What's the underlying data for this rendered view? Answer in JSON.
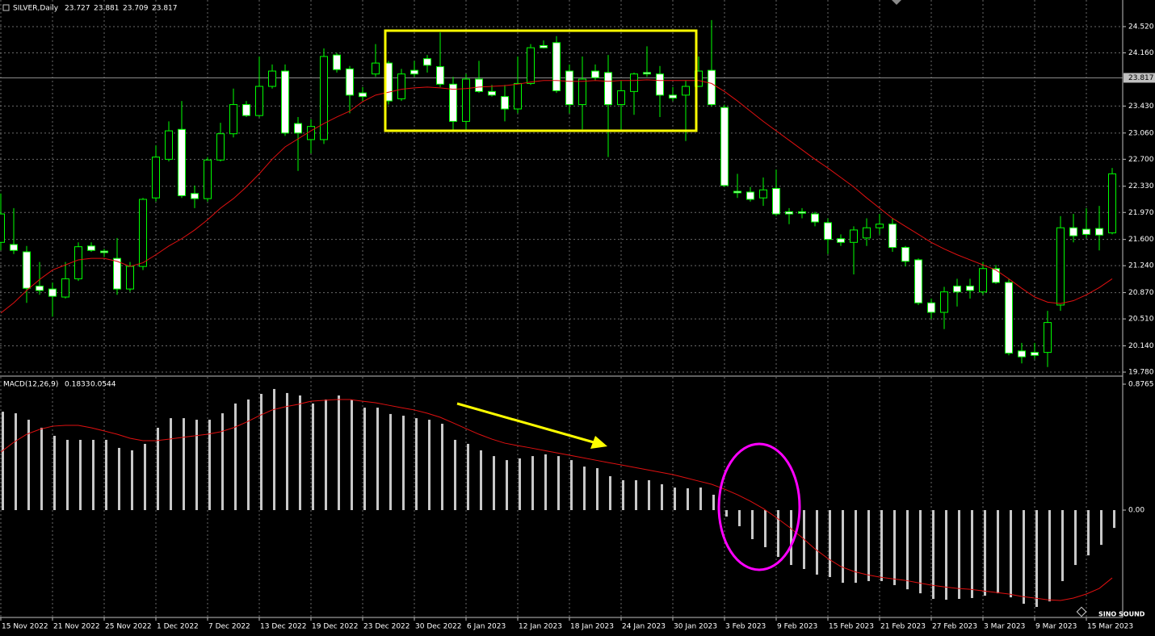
{
  "watermark": "SINO SOUND",
  "chart_data": [
    {
      "type": "candlestick",
      "header": {
        "symbol": "SILVER,Daily",
        "ohlc": [
          23.727,
          23.881,
          23.709,
          23.817
        ]
      },
      "categories": [
        "15 Nov 2022",
        null,
        null,
        null,
        "21 Nov 2022",
        null,
        null,
        null,
        "25 Nov 2022",
        null,
        null,
        null,
        "1 Dec 2022",
        null,
        null,
        null,
        "7 Dec 2022",
        null,
        null,
        null,
        "13 Dec 2022",
        null,
        null,
        null,
        "19 Dec 2022",
        null,
        null,
        null,
        "23 Dec 2022",
        null,
        null,
        null,
        "30 Dec 2022",
        null,
        null,
        null,
        "6 Jan 2023",
        null,
        null,
        null,
        "12 Jan 2023",
        null,
        null,
        null,
        "18 Jan 2023",
        null,
        null,
        null,
        "24 Jan 2023",
        null,
        null,
        null,
        "30 Jan 2023",
        null,
        null,
        null,
        "3 Feb 2023",
        null,
        null,
        null,
        "9 Feb 2023",
        null,
        null,
        null,
        "15 Feb 2023",
        null,
        null,
        null,
        "21 Feb 2023",
        null,
        null,
        null,
        "27 Feb 2023",
        null,
        null,
        null,
        "3 Mar 2023",
        null,
        null,
        null,
        "9 Mar 2023",
        null,
        null,
        null,
        "15 Mar 2023",
        null,
        null
      ],
      "ohlc": [
        [
          21.56,
          22.23,
          21.45,
          21.95
        ],
        [
          21.53,
          22.03,
          21.4,
          21.45
        ],
        [
          21.43,
          21.51,
          20.73,
          20.93
        ],
        [
          20.96,
          21.29,
          20.84,
          20.9
        ],
        [
          20.92,
          21.01,
          20.54,
          20.82
        ],
        [
          20.81,
          21.29,
          20.79,
          21.06
        ],
        [
          21.06,
          21.56,
          21.03,
          21.5
        ],
        [
          21.51,
          21.56,
          21.43,
          21.45
        ],
        [
          21.44,
          21.47,
          21.36,
          21.42
        ],
        [
          21.34,
          21.62,
          20.84,
          20.92
        ],
        [
          20.92,
          21.29,
          20.88,
          21.23
        ],
        [
          21.23,
          22.17,
          21.18,
          22.15
        ],
        [
          22.17,
          22.89,
          22.12,
          22.73
        ],
        [
          22.7,
          23.22,
          22.67,
          23.09
        ],
        [
          23.11,
          23.5,
          22.17,
          22.2
        ],
        [
          22.23,
          22.34,
          22.03,
          22.16
        ],
        [
          22.16,
          22.73,
          22.12,
          22.69
        ],
        [
          22.69,
          23.2,
          22.67,
          23.05
        ],
        [
          23.05,
          23.67,
          23.0,
          23.45
        ],
        [
          23.45,
          23.5,
          23.28,
          23.3
        ],
        [
          23.3,
          24.11,
          23.28,
          23.7
        ],
        [
          23.7,
          24.0,
          23.67,
          23.91
        ],
        [
          23.91,
          24.0,
          23.02,
          23.06
        ],
        [
          23.19,
          23.28,
          22.54,
          23.06
        ],
        [
          22.97,
          23.25,
          22.78,
          23.15
        ],
        [
          22.97,
          24.22,
          22.91,
          24.11
        ],
        [
          24.13,
          24.16,
          23.89,
          23.93
        ],
        [
          23.94,
          23.98,
          23.33,
          23.58
        ],
        [
          23.61,
          23.69,
          23.5,
          23.56
        ],
        [
          23.87,
          24.28,
          23.83,
          24.02
        ],
        [
          24.02,
          24.05,
          23.45,
          23.5
        ],
        [
          23.53,
          23.94,
          23.5,
          23.87
        ],
        [
          23.92,
          24.05,
          23.83,
          23.87
        ],
        [
          24.08,
          24.13,
          23.89,
          23.99
        ],
        [
          23.97,
          24.44,
          23.69,
          23.73
        ],
        [
          23.73,
          23.83,
          23.09,
          23.22
        ],
        [
          23.22,
          23.87,
          23.11,
          23.8
        ],
        [
          23.8,
          24.05,
          23.61,
          23.63
        ],
        [
          23.63,
          23.72,
          23.56,
          23.58
        ],
        [
          23.56,
          23.72,
          23.22,
          23.39
        ],
        [
          23.39,
          24.11,
          23.33,
          23.74
        ],
        [
          23.74,
          24.28,
          23.72,
          24.23
        ],
        [
          24.26,
          24.33,
          24.22,
          24.23
        ],
        [
          24.3,
          24.39,
          23.61,
          23.64
        ],
        [
          23.91,
          24.0,
          23.33,
          23.45
        ],
        [
          23.45,
          24.11,
          23.11,
          23.8
        ],
        [
          23.91,
          24.0,
          23.78,
          23.82
        ],
        [
          23.89,
          24.13,
          22.73,
          23.45
        ],
        [
          23.45,
          23.78,
          23.09,
          23.64
        ],
        [
          23.63,
          23.89,
          23.31,
          23.87
        ],
        [
          23.89,
          24.25,
          23.83,
          23.87
        ],
        [
          23.87,
          23.98,
          23.28,
          23.58
        ],
        [
          23.58,
          23.69,
          23.5,
          23.54
        ],
        [
          23.58,
          23.78,
          22.95,
          23.7
        ],
        [
          23.7,
          24.11,
          23.69,
          23.91
        ],
        [
          23.92,
          24.61,
          23.42,
          23.45
        ],
        [
          23.41,
          23.45,
          22.32,
          22.34
        ],
        [
          22.26,
          22.5,
          22.17,
          22.24
        ],
        [
          22.25,
          22.32,
          22.12,
          22.15
        ],
        [
          22.17,
          22.45,
          22.06,
          22.28
        ],
        [
          22.3,
          22.56,
          21.92,
          21.95
        ],
        [
          21.98,
          22.03,
          21.81,
          21.95
        ],
        [
          21.98,
          22.03,
          21.89,
          21.96
        ],
        [
          21.95,
          21.98,
          21.78,
          21.84
        ],
        [
          21.83,
          21.89,
          21.4,
          21.6
        ],
        [
          21.61,
          21.67,
          21.51,
          21.56
        ],
        [
          21.56,
          21.78,
          21.12,
          21.73
        ],
        [
          21.62,
          21.89,
          21.51,
          21.76
        ],
        [
          21.76,
          21.95,
          21.67,
          21.81
        ],
        [
          21.81,
          21.89,
          21.43,
          21.49
        ],
        [
          21.49,
          21.51,
          21.23,
          21.3
        ],
        [
          21.32,
          21.34,
          20.7,
          20.73
        ],
        [
          20.73,
          20.79,
          20.51,
          20.6
        ],
        [
          20.6,
          20.95,
          20.37,
          20.88
        ],
        [
          20.96,
          21.06,
          20.68,
          20.88
        ],
        [
          20.96,
          21.06,
          20.79,
          20.9
        ],
        [
          20.88,
          21.29,
          20.84,
          21.2
        ],
        [
          21.2,
          21.25,
          20.99,
          21.01
        ],
        [
          21.01,
          21.06,
          20.01,
          20.04
        ],
        [
          20.07,
          20.18,
          19.9,
          19.99
        ],
        [
          20.05,
          20.18,
          19.96,
          20.01
        ],
        [
          20.05,
          20.62,
          19.85,
          20.46
        ],
        [
          20.7,
          21.92,
          20.62,
          21.76
        ],
        [
          21.76,
          21.95,
          21.56,
          21.65
        ],
        [
          21.74,
          22.03,
          21.62,
          21.67
        ],
        [
          21.75,
          22.06,
          21.45,
          21.66
        ],
        [
          21.69,
          22.58,
          21.67,
          22.5
        ]
      ],
      "bull_color": "#000000",
      "bear_color": "#ffffff",
      "wick_color": "#00ff00",
      "ma": {
        "color": "#e01010",
        "values": [
          20.59,
          20.73,
          20.9,
          21.05,
          21.18,
          21.25,
          21.32,
          21.34,
          21.34,
          21.3,
          21.23,
          21.28,
          21.39,
          21.51,
          21.61,
          21.73,
          21.87,
          22.03,
          22.16,
          22.32,
          22.5,
          22.7,
          22.87,
          22.98,
          23.09,
          23.19,
          23.28,
          23.36,
          23.49,
          23.58,
          23.62,
          23.66,
          23.68,
          23.69,
          23.68,
          23.66,
          23.67,
          23.69,
          23.7,
          23.71,
          23.73,
          23.76,
          23.78,
          23.78,
          23.77,
          23.77,
          23.78,
          23.77,
          23.78,
          23.78,
          23.79,
          23.78,
          23.78,
          23.78,
          23.78,
          23.74,
          23.63,
          23.5,
          23.36,
          23.22,
          23.09,
          22.96,
          22.83,
          22.7,
          22.58,
          22.45,
          22.32,
          22.17,
          22.03,
          21.89,
          21.78,
          21.67,
          21.56,
          21.47,
          21.39,
          21.32,
          21.25,
          21.18,
          21.06,
          20.93,
          20.81,
          20.74,
          20.72,
          20.76,
          20.84,
          20.94,
          21.06
        ]
      },
      "current_price": 23.817,
      "ylim": [
        19.736,
        24.885
      ],
      "yticks": [
        {
          "value": 19.78,
          "label": "19.780"
        },
        {
          "value": 20.14,
          "label": "20.140"
        },
        {
          "value": 20.51,
          "label": "20.510"
        },
        {
          "value": 20.87,
          "label": "20.870"
        },
        {
          "value": 21.24,
          "label": "21.240"
        },
        {
          "value": 21.6,
          "label": "21.600"
        },
        {
          "value": 21.97,
          "label": "21.970"
        },
        {
          "value": 22.33,
          "label": "22.330"
        },
        {
          "value": 22.7,
          "label": "22.700"
        },
        {
          "value": 23.06,
          "label": "23.060"
        },
        {
          "value": 23.43,
          "label": "23.430"
        },
        {
          "value": 24.16,
          "label": "24.160"
        },
        {
          "value": 24.52,
          "label": "24.520"
        }
      ],
      "grid": true
    },
    {
      "type": "macd",
      "label": "MACD(12,26,9)",
      "readings": [
        0.1833,
        0.0544
      ],
      "color": "#c8c8c8",
      "values": [
        0.685,
        0.674,
        0.629,
        0.573,
        0.517,
        0.489,
        0.489,
        0.489,
        0.489,
        0.433,
        0.416,
        0.461,
        0.573,
        0.64,
        0.64,
        0.629,
        0.629,
        0.674,
        0.742,
        0.77,
        0.809,
        0.843,
        0.815,
        0.798,
        0.742,
        0.77,
        0.798,
        0.77,
        0.713,
        0.713,
        0.669,
        0.657,
        0.64,
        0.629,
        0.601,
        0.489,
        0.461,
        0.416,
        0.376,
        0.348,
        0.36,
        0.376,
        0.388,
        0.376,
        0.348,
        0.303,
        0.292,
        0.236,
        0.208,
        0.208,
        0.208,
        0.18,
        0.157,
        0.152,
        0.157,
        0.107,
        -0.045,
        -0.112,
        -0.202,
        -0.258,
        -0.326,
        -0.382,
        -0.41,
        -0.449,
        -0.466,
        -0.506,
        -0.506,
        -0.494,
        -0.494,
        -0.522,
        -0.551,
        -0.579,
        -0.618,
        -0.624,
        -0.618,
        -0.612,
        -0.596,
        -0.579,
        -0.607,
        -0.652,
        -0.674,
        -0.635,
        -0.494,
        -0.382,
        -0.315,
        -0.242,
        -0.124
      ],
      "signal": {
        "color": "#e01010",
        "values": [
          0.404,
          0.472,
          0.528,
          0.562,
          0.584,
          0.59,
          0.59,
          0.573,
          0.551,
          0.528,
          0.5,
          0.483,
          0.483,
          0.494,
          0.506,
          0.517,
          0.528,
          0.545,
          0.573,
          0.612,
          0.657,
          0.697,
          0.719,
          0.736,
          0.758,
          0.764,
          0.77,
          0.77,
          0.758,
          0.747,
          0.73,
          0.713,
          0.697,
          0.674,
          0.646,
          0.607,
          0.567,
          0.528,
          0.494,
          0.466,
          0.449,
          0.433,
          0.416,
          0.399,
          0.382,
          0.365,
          0.348,
          0.331,
          0.315,
          0.298,
          0.281,
          0.264,
          0.247,
          0.225,
          0.202,
          0.18,
          0.146,
          0.107,
          0.062,
          0.011,
          -0.051,
          -0.118,
          -0.191,
          -0.27,
          -0.337,
          -0.393,
          -0.427,
          -0.449,
          -0.466,
          -0.478,
          -0.489,
          -0.506,
          -0.522,
          -0.534,
          -0.545,
          -0.551,
          -0.562,
          -0.573,
          -0.584,
          -0.601,
          -0.612,
          -0.624,
          -0.629,
          -0.612,
          -0.584,
          -0.545,
          -0.472
        ]
      },
      "ylim": [
        -0.747,
        0.927
      ],
      "yticks": [
        0.8765,
        {
          "value": 0,
          "label": "0.00"
        }
      ]
    }
  ]
}
